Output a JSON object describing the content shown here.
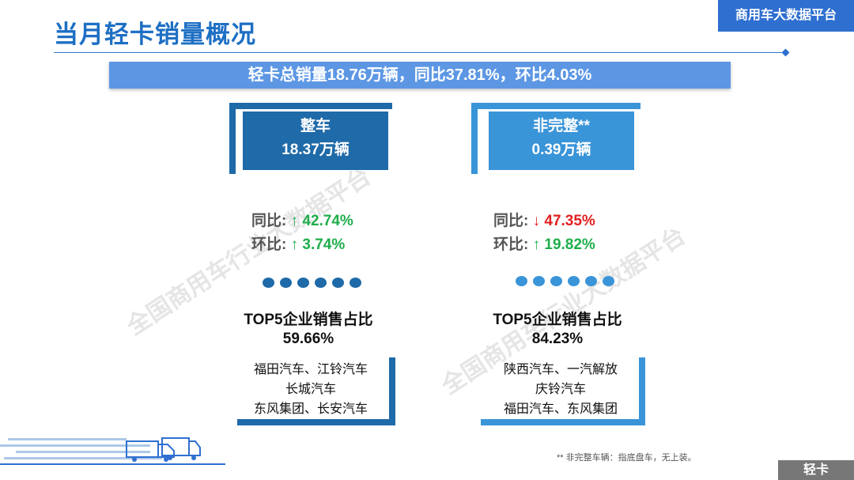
{
  "header": {
    "title": "当月轻卡销量概况",
    "platform": "商用车大数据平台"
  },
  "summary": "轻卡总销量18.76万辆，同比37.81%，环比4.03%",
  "cards": [
    {
      "name": "整车",
      "volume": "18.37万辆",
      "yoy_label": "同比:",
      "yoy_arrow": "↑",
      "yoy_value": "42.74%",
      "mom_label": "环比:",
      "mom_arrow": "↑",
      "mom_value": "3.74%",
      "top5_title": "TOP5企业销售占比",
      "top5_share": "59.66%",
      "companies": [
        "福田汽车、江铃汽车",
        "长城汽车",
        "东风集团、长安汽车"
      ]
    },
    {
      "name": "非完整**",
      "volume": "0.39万辆",
      "yoy_label": "同比:",
      "yoy_arrow": "↓",
      "yoy_value": "47.35%",
      "mom_label": "环比:",
      "mom_arrow": "↑",
      "mom_value": "19.82%",
      "top5_title": "TOP5企业销售占比",
      "top5_share": "84.23%",
      "companies": [
        "陕西汽车、一汽解放",
        "庆铃汽车",
        "福田汽车、东风集团"
      ]
    }
  ],
  "footnote": "** 非完整车辆：指底盘车，无上装。",
  "category_tag": "轻卡",
  "watermark": "全国商用车行业大数据平台",
  "colors": {
    "title": "#1e6fc4",
    "banner": "#5d97e4",
    "left_dark": "#1f6aa8",
    "right_light": "#3a94d8",
    "up": "#1fae4b",
    "down": "#e02020"
  }
}
